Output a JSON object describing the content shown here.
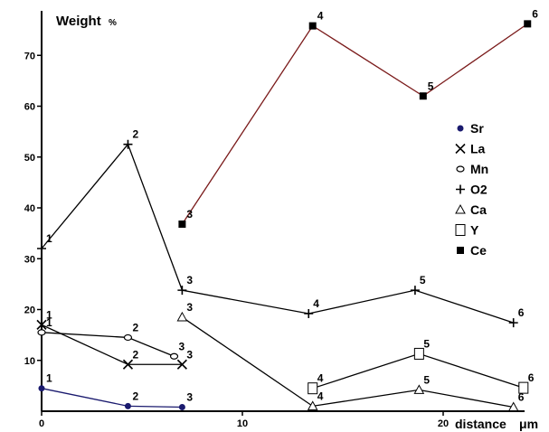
{
  "chart_data": {
    "type": "line",
    "title": "Weight",
    "ylabel_unit": "%",
    "xlabel": "distance",
    "xlabel_unit": "μm",
    "xlim": [
      0,
      24
    ],
    "ylim": [
      0,
      78
    ],
    "x_ticks": [
      "0",
      "10",
      "20"
    ],
    "y_ticks": [
      "10",
      "20",
      "30",
      "40",
      "50",
      "60",
      "70"
    ],
    "grid": false,
    "legend_position": "right",
    "series": [
      {
        "name": "Sr",
        "marker": "filled-circle",
        "color": "#1a1a6e",
        "points": [
          {
            "x": 0,
            "y": 4.5,
            "label": "1"
          },
          {
            "x": 4.3,
            "y": 1.0,
            "label": "2"
          },
          {
            "x": 7.0,
            "y": 0.8,
            "label": "3"
          }
        ]
      },
      {
        "name": "La",
        "marker": "x",
        "color": "#000000",
        "points": [
          {
            "x": 0,
            "y": 17.0,
            "label": "1"
          },
          {
            "x": 4.3,
            "y": 9.2,
            "label": "2"
          },
          {
            "x": 7.0,
            "y": 9.2,
            "label": "3"
          }
        ]
      },
      {
        "name": "Mn",
        "marker": "open-circle",
        "color": "#000000",
        "points": [
          {
            "x": 0,
            "y": 15.5,
            "label": "1"
          },
          {
            "x": 4.3,
            "y": 14.5,
            "label": "2"
          },
          {
            "x": 6.6,
            "y": 10.8,
            "label": "3"
          }
        ]
      },
      {
        "name": "O2",
        "marker": "plus",
        "color": "#000000",
        "points": [
          {
            "x": 0,
            "y": 32.0,
            "label": "1"
          },
          {
            "x": 4.3,
            "y": 52.5,
            "label": "2"
          },
          {
            "x": 7.0,
            "y": 23.8,
            "label": "3"
          },
          {
            "x": 13.3,
            "y": 19.2,
            "label": "4"
          },
          {
            "x": 18.6,
            "y": 23.8,
            "label": "5"
          },
          {
            "x": 23.5,
            "y": 17.4,
            "label": "6"
          }
        ]
      },
      {
        "name": "Ca",
        "marker": "open-triangle",
        "color": "#000000",
        "points": [
          {
            "x": 7.0,
            "y": 18.5,
            "label": "3"
          },
          {
            "x": 13.5,
            "y": 1.0,
            "label": "4"
          },
          {
            "x": 18.8,
            "y": 4.2,
            "label": "5"
          },
          {
            "x": 23.5,
            "y": 0.8,
            "label": "6"
          }
        ]
      },
      {
        "name": "Y",
        "marker": "open-square",
        "color": "#000000",
        "points": [
          {
            "x": 13.5,
            "y": 4.5,
            "label": "4"
          },
          {
            "x": 18.8,
            "y": 11.3,
            "label": "5"
          },
          {
            "x": 24.0,
            "y": 4.6,
            "label": "6"
          }
        ]
      },
      {
        "name": "Ce",
        "marker": "filled-square",
        "color": "#000000",
        "line_color": "#7a1a1a",
        "points": [
          {
            "x": 7.0,
            "y": 36.8,
            "label": "3"
          },
          {
            "x": 13.5,
            "y": 75.8,
            "label": "4"
          },
          {
            "x": 19.0,
            "y": 62.0,
            "label": "5"
          },
          {
            "x": 24.2,
            "y": 76.2,
            "label": "6"
          }
        ]
      }
    ]
  }
}
